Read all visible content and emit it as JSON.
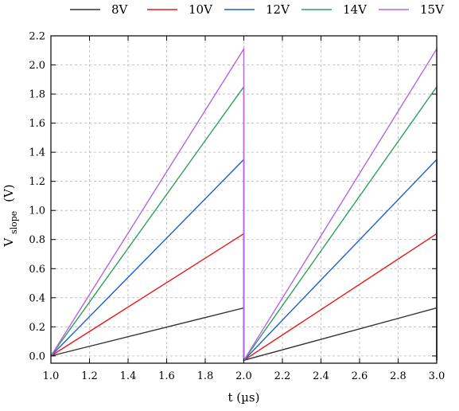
{
  "chart_data": {
    "type": "line",
    "xlabel": "t (µs)",
    "ylabel_main": "V",
    "ylabel_sub": "slope",
    "ylabel_unit": "(V)",
    "xlim": [
      1.0,
      3.0
    ],
    "ylim": [
      -0.05,
      2.2
    ],
    "x_ticks": [
      "1.0",
      "1.2",
      "1.4",
      "1.6",
      "1.8",
      "2.0",
      "2.2",
      "2.4",
      "2.6",
      "2.8",
      "3.0"
    ],
    "y_ticks": [
      "0.0",
      "0.2",
      "0.4",
      "0.6",
      "0.8",
      "1.0",
      "1.2",
      "1.4",
      "1.6",
      "1.8",
      "2.0",
      "2.2"
    ],
    "grid": true,
    "legend_position": "top",
    "series": [
      {
        "name": "8V",
        "color": "#333333",
        "x": [
          1.0,
          2.0,
          2.0,
          3.0,
          3.0
        ],
        "y": [
          0.0,
          0.33,
          -0.03,
          0.33,
          -0.03
        ]
      },
      {
        "name": "10V",
        "color": "#e41a1c",
        "x": [
          1.0,
          2.0,
          2.0,
          3.0,
          3.0
        ],
        "y": [
          0.0,
          0.84,
          -0.03,
          0.84,
          -0.03
        ]
      },
      {
        "name": "12V",
        "color": "#1f5fc9",
        "x": [
          1.0,
          2.0,
          2.0,
          3.0,
          3.0
        ],
        "y": [
          0.0,
          1.35,
          -0.03,
          1.35,
          -0.03
        ]
      },
      {
        "name": "14V",
        "color": "#2ca05a",
        "x": [
          1.0,
          2.0,
          2.0,
          3.0,
          3.0
        ],
        "y": [
          0.0,
          1.85,
          -0.03,
          1.85,
          -0.03
        ]
      },
      {
        "name": "15V",
        "color": "#b366e0",
        "x": [
          1.0,
          2.0,
          2.0,
          3.0,
          3.0
        ],
        "y": [
          0.0,
          2.11,
          -0.03,
          2.11,
          -0.03
        ]
      }
    ]
  }
}
